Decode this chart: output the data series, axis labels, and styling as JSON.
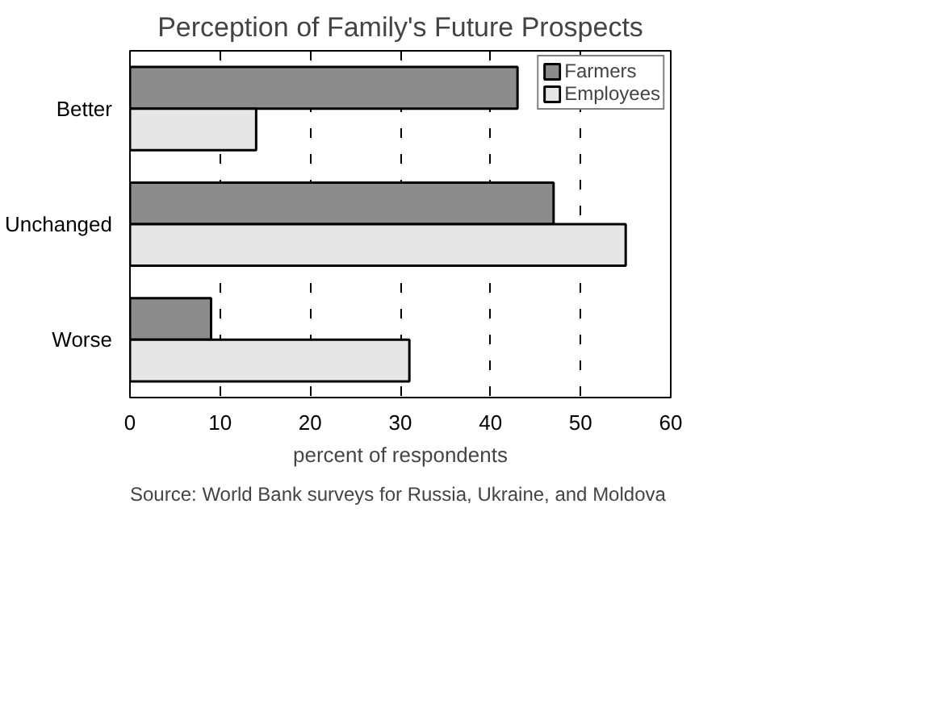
{
  "chart_data": {
    "type": "bar",
    "orientation": "horizontal",
    "title": "Perception of Family's Future Prospects",
    "xlabel": "percent of respondents",
    "categories": [
      "Better",
      "Unchanged",
      "Worse"
    ],
    "series": [
      {
        "name": "Farmers",
        "color": "#8c8c8c",
        "values": [
          43,
          47,
          9
        ]
      },
      {
        "name": "Employees",
        "color": "#e6e6e6",
        "values": [
          14,
          55,
          31
        ]
      }
    ],
    "xlim": [
      0,
      60
    ],
    "xticks": [
      0,
      10,
      20,
      30,
      40,
      50,
      60
    ],
    "grid": "x",
    "legend": "top right",
    "annotations": [
      "Source: World Bank surveys for Russia, Ukraine, and Moldova"
    ]
  }
}
